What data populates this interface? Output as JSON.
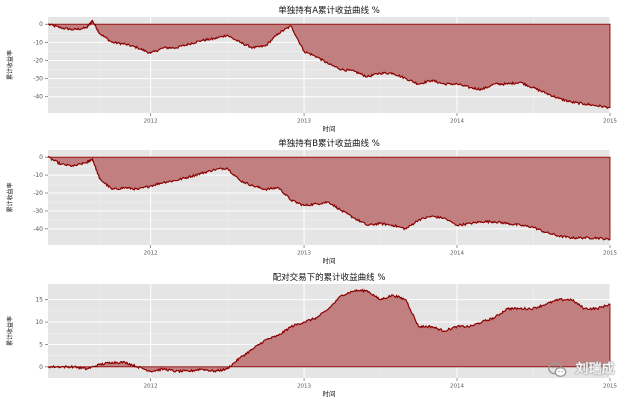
{
  "watermark": {
    "text": "刘瑞成",
    "icon": "wechat-icon"
  },
  "chart_data": [
    {
      "type": "area",
      "title": "单独持有A累计收益曲线 %",
      "xlabel": "时间",
      "ylabel": "累计收益率",
      "x_domain": [
        "2011-05-01",
        "2015-01-01"
      ],
      "xticks": [
        {
          "label": "2012",
          "date": "2012-01-01"
        },
        {
          "label": "2013",
          "date": "2013-01-01"
        },
        {
          "label": "2014",
          "date": "2014-01-01"
        },
        {
          "label": "2015",
          "date": "2015-01-01"
        }
      ],
      "ylim": [
        -49,
        4
      ],
      "yticks": [
        0,
        -10,
        -20,
        -30,
        -40
      ],
      "fill_color": "#c17f80",
      "line_color": "#8b0000",
      "panel_bg": "#e5e5e5",
      "grid": true,
      "series": [
        {
          "x": [
            "2011-05-01",
            "2011-06-01",
            "2011-07-01",
            "2011-08-01",
            "2011-08-15",
            "2011-09-01",
            "2011-10-01",
            "2011-11-01",
            "2011-12-01",
            "2012-01-01",
            "2012-02-01",
            "2012-03-01",
            "2012-04-01",
            "2012-05-01",
            "2012-06-01",
            "2012-07-01",
            "2012-08-01",
            "2012-09-01",
            "2012-10-01",
            "2012-11-01",
            "2012-12-01",
            "2013-01-01",
            "2013-02-01",
            "2013-03-01",
            "2013-04-01",
            "2013-05-01",
            "2013-06-01",
            "2013-07-01",
            "2013-08-01",
            "2013-09-01",
            "2013-10-01",
            "2013-11-01",
            "2013-12-01",
            "2014-01-01",
            "2014-02-01",
            "2014-03-01",
            "2014-04-01",
            "2014-05-01",
            "2014-06-01",
            "2014-07-01",
            "2014-08-01",
            "2014-09-01",
            "2014-10-01",
            "2014-11-01",
            "2014-12-01",
            "2015-01-01"
          ],
          "y": [
            0,
            -2,
            -3,
            -2,
            2,
            -5,
            -10,
            -11,
            -13,
            -16,
            -13,
            -13,
            -11,
            -9,
            -8,
            -6,
            -10,
            -13,
            -12,
            -5,
            -1,
            -15,
            -18,
            -22,
            -25,
            -26,
            -29,
            -27,
            -27,
            -30,
            -33,
            -31,
            -33,
            -33,
            -35,
            -36,
            -33,
            -33,
            -32,
            -35,
            -38,
            -41,
            -43,
            -44,
            -45,
            -46
          ]
        }
      ]
    },
    {
      "type": "area",
      "title": "单独持有B累计收益曲线 %",
      "xlabel": "时间",
      "ylabel": "累计收益率",
      "x_domain": [
        "2011-05-01",
        "2015-01-01"
      ],
      "xticks": [
        {
          "label": "2012",
          "date": "2012-01-01"
        },
        {
          "label": "2013",
          "date": "2013-01-01"
        },
        {
          "label": "2014",
          "date": "2014-01-01"
        },
        {
          "label": "2015",
          "date": "2015-01-01"
        }
      ],
      "ylim": [
        -49,
        4
      ],
      "yticks": [
        0,
        -10,
        -20,
        -30,
        -40
      ],
      "fill_color": "#c17f80",
      "line_color": "#8b0000",
      "panel_bg": "#e5e5e5",
      "grid": true,
      "series": [
        {
          "x": [
            "2011-05-01",
            "2011-06-01",
            "2011-07-01",
            "2011-08-01",
            "2011-08-15",
            "2011-09-01",
            "2011-10-01",
            "2011-11-01",
            "2011-12-01",
            "2012-01-01",
            "2012-02-01",
            "2012-03-01",
            "2012-04-01",
            "2012-05-01",
            "2012-06-01",
            "2012-07-01",
            "2012-08-01",
            "2012-09-01",
            "2012-10-01",
            "2012-11-01",
            "2012-12-01",
            "2013-01-01",
            "2013-02-01",
            "2013-03-01",
            "2013-04-01",
            "2013-05-01",
            "2013-06-01",
            "2013-07-01",
            "2013-08-01",
            "2013-09-01",
            "2013-10-01",
            "2013-11-01",
            "2013-12-01",
            "2014-01-01",
            "2014-02-01",
            "2014-03-01",
            "2014-04-01",
            "2014-05-01",
            "2014-06-01",
            "2014-07-01",
            "2014-08-01",
            "2014-09-01",
            "2014-10-01",
            "2014-11-01",
            "2014-12-01",
            "2015-01-01"
          ],
          "y": [
            0,
            -4,
            -5,
            -3,
            -1,
            -12,
            -18,
            -17,
            -18,
            -16,
            -14,
            -13,
            -11,
            -9,
            -7,
            -6,
            -13,
            -16,
            -18,
            -17,
            -24,
            -27,
            -26,
            -25,
            -30,
            -34,
            -38,
            -37,
            -38,
            -40,
            -35,
            -33,
            -34,
            -38,
            -37,
            -36,
            -36,
            -37,
            -38,
            -39,
            -42,
            -44,
            -45,
            -45,
            -45,
            -46
          ]
        }
      ]
    },
    {
      "type": "area",
      "title": "配对交易下的累计收益曲线 %",
      "xlabel": "时间",
      "ylabel": "累计收益率",
      "x_domain": [
        "2011-05-01",
        "2015-01-01"
      ],
      "xticks": [
        {
          "label": "2012",
          "date": "2012-01-01"
        },
        {
          "label": "2013",
          "date": "2013-01-01"
        },
        {
          "label": "2014",
          "date": "2014-01-01"
        },
        {
          "label": "2015",
          "date": "2015-01-01"
        }
      ],
      "ylim": [
        -2.5,
        18.5
      ],
      "yticks": [
        0,
        5,
        10,
        15
      ],
      "fill_color": "#c17f80",
      "line_color": "#8b0000",
      "panel_bg": "#e5e5e5",
      "grid": true,
      "series": [
        {
          "x": [
            "2011-05-01",
            "2011-06-01",
            "2011-07-01",
            "2011-08-01",
            "2011-09-01",
            "2011-10-01",
            "2011-11-01",
            "2011-12-01",
            "2012-01-01",
            "2012-02-01",
            "2012-03-01",
            "2012-04-01",
            "2012-05-01",
            "2012-06-01",
            "2012-07-01",
            "2012-08-01",
            "2012-09-01",
            "2012-10-01",
            "2012-11-01",
            "2012-12-01",
            "2013-01-01",
            "2013-02-01",
            "2013-03-01",
            "2013-04-01",
            "2013-05-01",
            "2013-06-01",
            "2013-07-01",
            "2013-08-01",
            "2013-09-01",
            "2013-10-01",
            "2013-11-01",
            "2013-12-01",
            "2014-01-01",
            "2014-02-01",
            "2014-03-01",
            "2014-04-01",
            "2014-05-01",
            "2014-06-01",
            "2014-07-01",
            "2014-08-01",
            "2014-09-01",
            "2014-10-01",
            "2014-11-01",
            "2014-12-01",
            "2015-01-01"
          ],
          "y": [
            0,
            0,
            0,
            -0.5,
            0.5,
            1,
            1,
            0,
            -1,
            -0.5,
            -1,
            -1,
            -0.5,
            -1,
            -0.5,
            2,
            4,
            6,
            7,
            9,
            10,
            11,
            13,
            16,
            17,
            17,
            15,
            16,
            15,
            9,
            9,
            8,
            9,
            9,
            10,
            11,
            13,
            13,
            13,
            14,
            15,
            15,
            13,
            13,
            14
          ]
        }
      ]
    }
  ]
}
